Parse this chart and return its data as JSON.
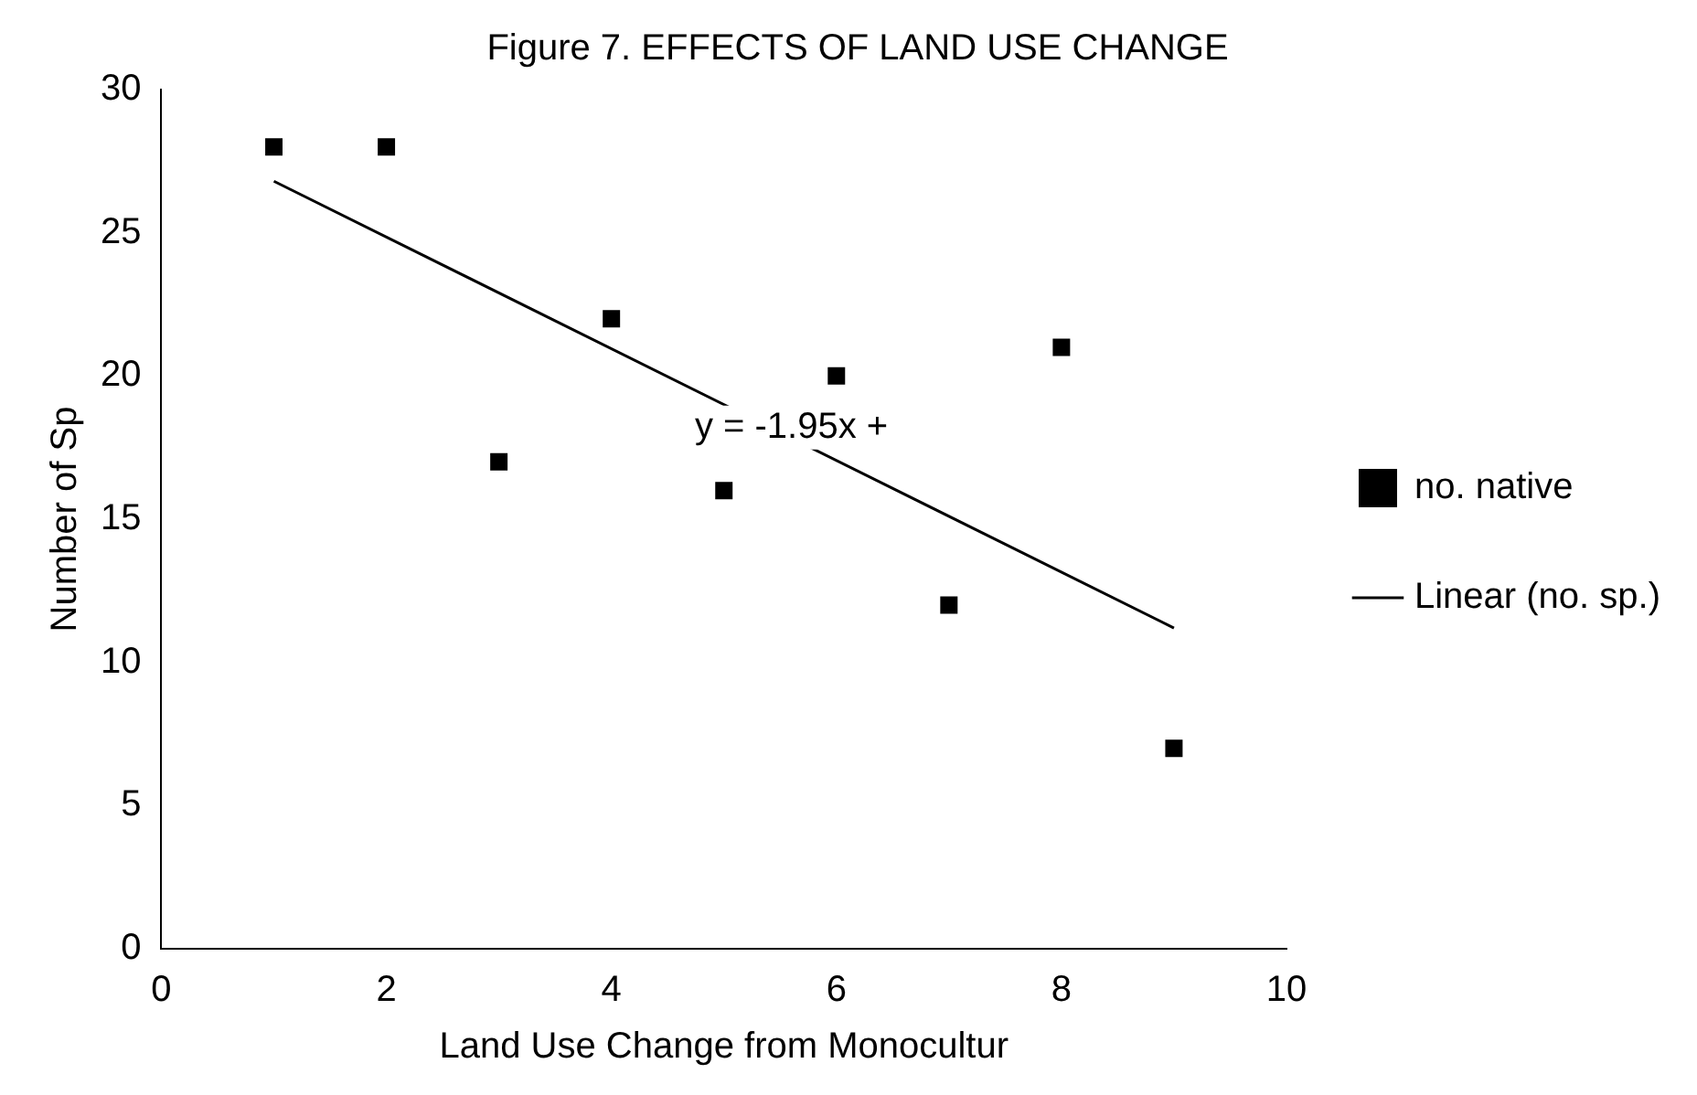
{
  "chart_data": {
    "type": "scatter",
    "title": "Figure 7. EFFECTS OF LAND USE CHANGE",
    "xlabel": "Land Use Change from Monocultur",
    "ylabel": "Number of Sp",
    "x": [
      1,
      2,
      3,
      4,
      5,
      6,
      7,
      8,
      9
    ],
    "series": [
      {
        "name": "no. native",
        "color": "#000000",
        "values": [
          28,
          28,
          17,
          22,
          16,
          20,
          12,
          21,
          7
        ],
        "marker": "square"
      },
      {
        "name": "Linear (no. sp.)",
        "type": "line",
        "color": "#000000",
        "x": [
          1,
          9
        ],
        "values": [
          26.8,
          11.2
        ],
        "marker": "none",
        "line_style": "solid"
      }
    ],
    "annotations": [
      {
        "text": "y = -1.95x +",
        "x": 5.6,
        "y": 18.2
      }
    ],
    "xlim": [
      0,
      10
    ],
    "xticks": [
      0,
      2,
      4,
      6,
      8,
      10
    ],
    "ylim": [
      0,
      30
    ],
    "yticks": [
      0,
      5,
      10,
      15,
      20,
      25,
      30
    ],
    "grid": false,
    "legend": "right"
  }
}
